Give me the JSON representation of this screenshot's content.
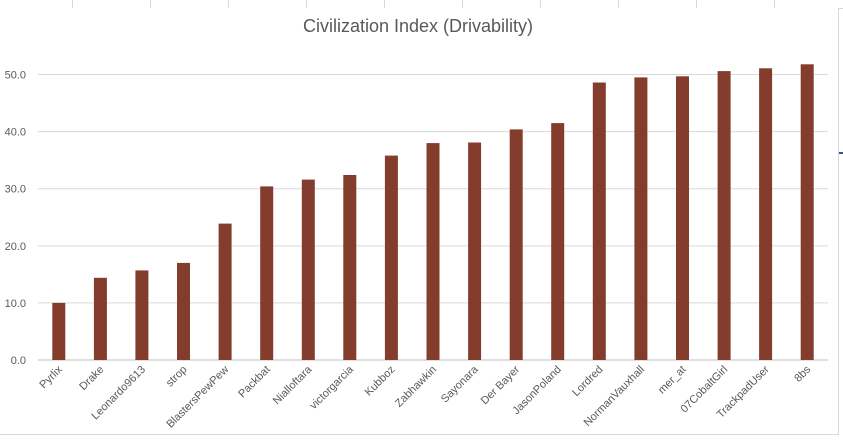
{
  "chart_data": {
    "type": "bar",
    "title": "Civilization Index (Drivability)",
    "xlabel": "",
    "ylabel": "",
    "ylim": [
      0,
      55
    ],
    "yticks": [
      "0.0",
      "10.0",
      "20.0",
      "30.0",
      "40.0",
      "50.0"
    ],
    "grid": true,
    "legend": "none",
    "bar_color": "#843C2C",
    "categories": [
      "Pyrlix",
      "Drake",
      "Leonardo9613",
      "strop",
      "BlastersPewPew",
      "Packbat",
      "Nialloftara",
      "victorgarcia",
      "Kubboz",
      "Zabhawkin",
      "Sayonara",
      "Der Bayer",
      "JasonPoland",
      "Lordred",
      "NormanVauxhall",
      "mer_at",
      "07CobaltGirl",
      "TrackpadUser",
      "8bs"
    ],
    "values": [
      10.0,
      14.4,
      15.7,
      17.0,
      23.9,
      30.4,
      31.6,
      32.4,
      35.8,
      38.0,
      38.1,
      40.4,
      41.5,
      48.6,
      49.5,
      49.7,
      50.6,
      51.1,
      51.8
    ]
  }
}
